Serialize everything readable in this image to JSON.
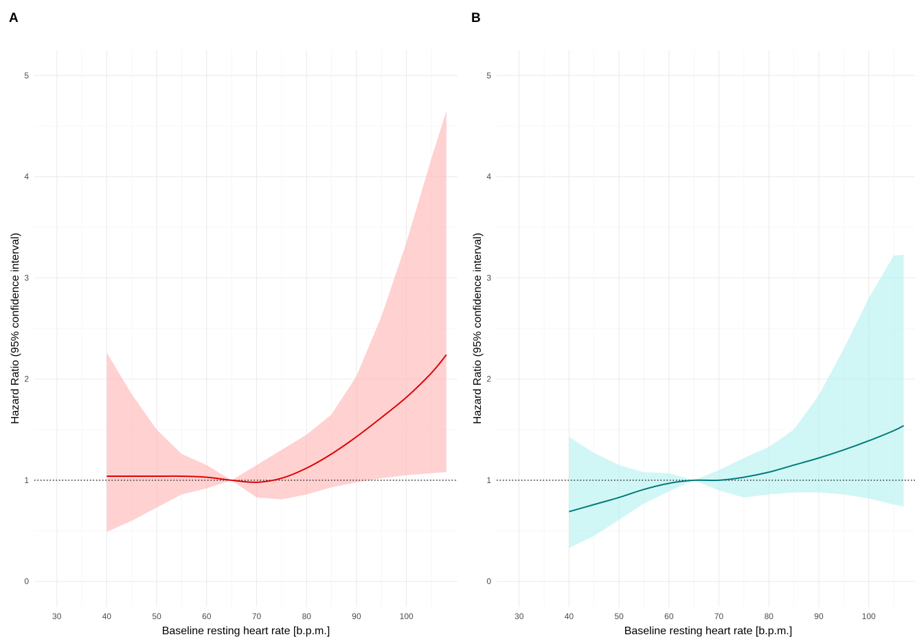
{
  "chart_data": [
    {
      "panel_label": "A",
      "type": "line",
      "xlabel": "Baseline resting heart rate [b.p.m.]",
      "ylabel": "Hazard Ratio (95% confidence interval)",
      "xlim": [
        25.5,
        110.5
      ],
      "ylim": [
        -0.25,
        5.25
      ],
      "xticks": [
        30,
        40,
        50,
        60,
        70,
        80,
        90,
        100
      ],
      "yticks": [
        0,
        1,
        2,
        3,
        4,
        5
      ],
      "reference_line": {
        "y": 1,
        "style": "dotted"
      },
      "grid": true,
      "line_color": "#e00000",
      "band_color": "#ffb3b3",
      "series": [
        {
          "x": [
            40,
            45,
            50,
            55,
            60,
            65,
            70,
            75,
            80,
            85,
            90,
            95,
            100,
            105,
            108
          ],
          "y": [
            1.04,
            1.04,
            1.04,
            1.04,
            1.03,
            1.0,
            0.98,
            1.02,
            1.12,
            1.26,
            1.43,
            1.62,
            1.82,
            2.06,
            2.24
          ],
          "lower": [
            0.49,
            0.6,
            0.73,
            0.86,
            0.92,
            1.0,
            0.83,
            0.81,
            0.86,
            0.93,
            0.98,
            1.02,
            1.05,
            1.07,
            1.08
          ],
          "upper": [
            2.26,
            1.85,
            1.5,
            1.26,
            1.15,
            1.0,
            1.15,
            1.3,
            1.45,
            1.65,
            2.03,
            2.62,
            3.35,
            4.18,
            4.65
          ]
        }
      ]
    },
    {
      "panel_label": "B",
      "type": "line",
      "xlabel": "Baseline resting heart rate [b.p.m.]",
      "ylabel": "Hazard Ratio (95% confidence interval)",
      "xlim": [
        25.5,
        110.5
      ],
      "ylim": [
        -0.25,
        5.25
      ],
      "xticks": [
        30,
        40,
        50,
        60,
        70,
        80,
        90,
        100
      ],
      "yticks": [
        0,
        1,
        2,
        3,
        4,
        5
      ],
      "reference_line": {
        "y": 1,
        "style": "dotted"
      },
      "grid": true,
      "line_color": "#007a7a",
      "band_color": "#b3f0f0",
      "series": [
        {
          "x": [
            40,
            45,
            50,
            55,
            60,
            65,
            70,
            75,
            80,
            85,
            90,
            95,
            100,
            105,
            107
          ],
          "y": [
            0.69,
            0.76,
            0.83,
            0.91,
            0.97,
            1.0,
            1.0,
            1.03,
            1.08,
            1.15,
            1.22,
            1.3,
            1.39,
            1.49,
            1.54
          ],
          "lower": [
            0.33,
            0.45,
            0.61,
            0.77,
            0.89,
            1.0,
            0.9,
            0.83,
            0.86,
            0.88,
            0.88,
            0.86,
            0.82,
            0.76,
            0.74
          ],
          "upper": [
            1.43,
            1.27,
            1.15,
            1.08,
            1.07,
            1.0,
            1.1,
            1.22,
            1.33,
            1.5,
            1.84,
            2.3,
            2.8,
            3.22,
            3.23
          ]
        }
      ]
    }
  ]
}
